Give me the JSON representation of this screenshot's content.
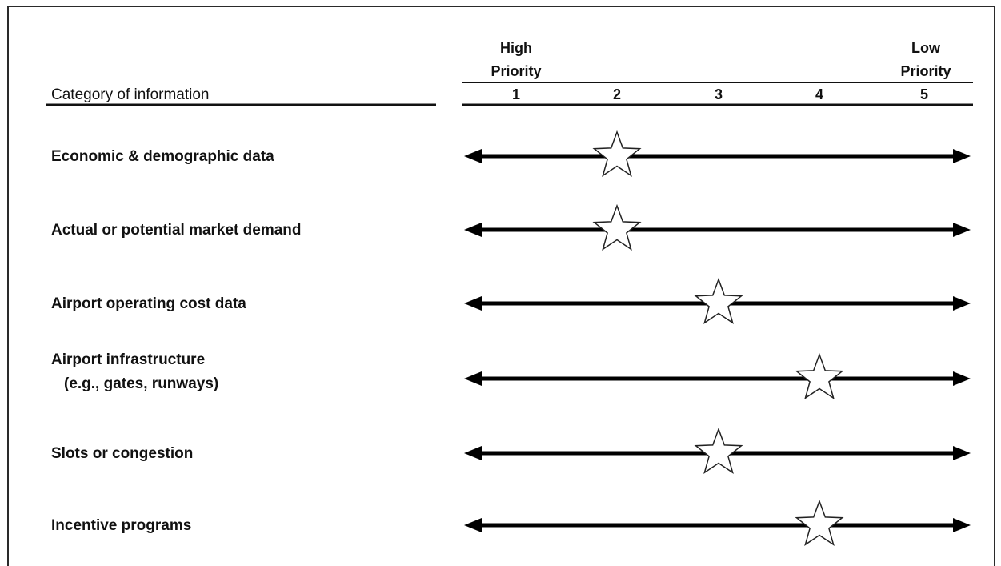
{
  "chart_data": {
    "type": "scatter",
    "column_header": "Category of information",
    "high_label": [
      "High",
      "Priority"
    ],
    "low_label": [
      "Low",
      "Priority"
    ],
    "scale": [
      1,
      2,
      3,
      4,
      5
    ],
    "xlim": [
      1,
      5
    ],
    "series_color": "#000000",
    "marker": "star",
    "categories": [
      {
        "label": [
          "Economic & demographic data"
        ],
        "priority": 2
      },
      {
        "label": [
          "Actual or potential market demand"
        ],
        "priority": 2
      },
      {
        "label": [
          "Airport operating cost data"
        ],
        "priority": 3
      },
      {
        "label": [
          "Airport infrastructure",
          "(e.g., gates, runways)"
        ],
        "priority": 4
      },
      {
        "label": [
          "Slots or congestion"
        ],
        "priority": 3
      },
      {
        "label": [
          "Incentive programs"
        ],
        "priority": 4
      }
    ]
  }
}
